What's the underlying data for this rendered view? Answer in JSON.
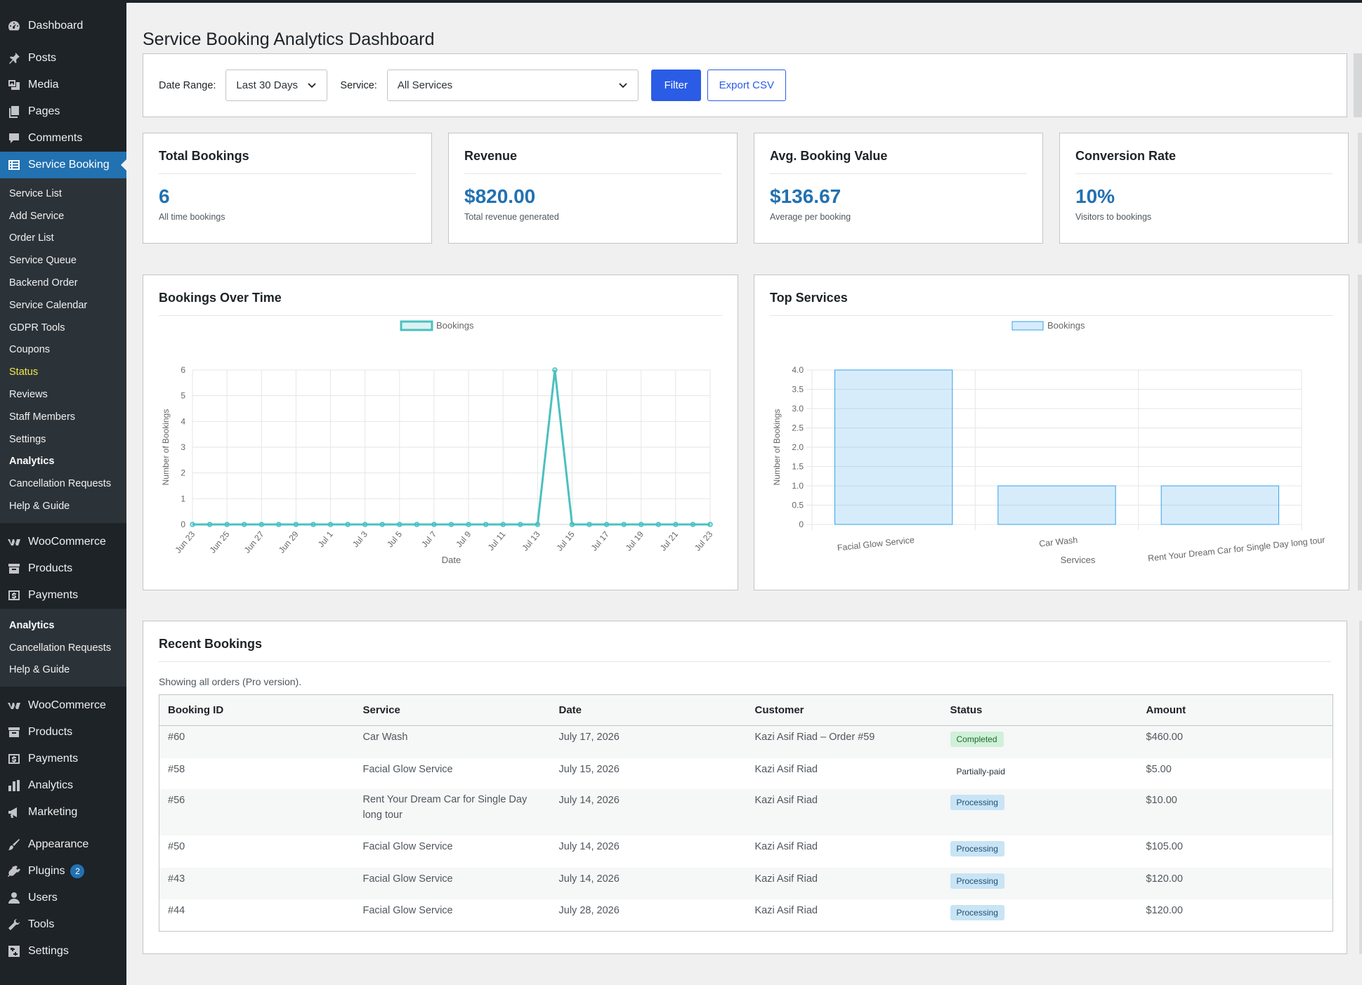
{
  "sidebar": {
    "items_top": [
      {
        "label": "Dashboard",
        "icon": "dashboard-icon"
      },
      {
        "label": "Posts",
        "icon": "pin-icon"
      },
      {
        "label": "Media",
        "icon": "media-icon"
      },
      {
        "label": "Pages",
        "icon": "pages-icon"
      },
      {
        "label": "Comments",
        "icon": "comment-icon"
      },
      {
        "label": "Service Booking",
        "icon": "list-icon"
      }
    ],
    "service_submenu": [
      "Service List",
      "Add Service",
      "Order List",
      "Service Queue",
      "Backend Order",
      "Service Calendar",
      "GDPR Tools",
      "Coupons",
      "Status",
      "Reviews",
      "Staff Members",
      "Settings",
      "Analytics",
      "Cancellation Requests",
      "Help & Guide"
    ],
    "items_mid": [
      {
        "label": "WooCommerce",
        "icon": "woo-icon"
      },
      {
        "label": "Products",
        "icon": "archive-icon"
      },
      {
        "label": "Payments",
        "icon": "payments-icon"
      }
    ],
    "dup_submenu": [
      "Analytics",
      "Cancellation Requests",
      "Help & Guide"
    ],
    "items_bottom": [
      {
        "label": "WooCommerce",
        "icon": "woo-icon"
      },
      {
        "label": "Products",
        "icon": "archive-icon"
      },
      {
        "label": "Payments",
        "icon": "payments-icon"
      },
      {
        "label": "Analytics",
        "icon": "bar-chart-icon"
      },
      {
        "label": "Marketing",
        "icon": "megaphone-icon"
      },
      {
        "label": "Appearance",
        "icon": "brush-icon"
      },
      {
        "label": "Plugins",
        "icon": "plugin-icon",
        "badge": "2"
      },
      {
        "label": "Users",
        "icon": "user-icon"
      },
      {
        "label": "Tools",
        "icon": "wrench-icon"
      },
      {
        "label": "Settings",
        "icon": "settings-icon"
      }
    ]
  },
  "page": {
    "title": "Service Booking Analytics Dashboard"
  },
  "filters": {
    "date_label": "Date Range:",
    "date_value": "Last 30 Days",
    "service_label": "Service:",
    "service_value": "All Services",
    "filter_btn": "Filter",
    "export_btn": "Export CSV"
  },
  "cards": [
    {
      "title": "Total Bookings",
      "value": "6",
      "sub": "All time bookings"
    },
    {
      "title": "Revenue",
      "value": "$820.00",
      "sub": "Total revenue generated"
    },
    {
      "title": "Avg. Booking Value",
      "value": "$136.67",
      "sub": "Average per booking"
    },
    {
      "title": "Conversion Rate",
      "value": "10%",
      "sub": "Visitors to bookings"
    }
  ],
  "chart_data": [
    {
      "panel_title": "Bookings Over Time",
      "type": "line",
      "legend": "Bookings",
      "xlabel": "Date",
      "ylabel": "Number of Bookings",
      "ylim": [
        0,
        6
      ],
      "yticks": [
        "0",
        "1",
        "2",
        "3",
        "4",
        "5",
        "6"
      ],
      "x_tick_labels": [
        "Jun 23",
        "Jun 25",
        "Jun 27",
        "Jun 29",
        "Jul 1",
        "Jul 3",
        "Jul 5",
        "Jul 7",
        "Jul 9",
        "Jul 11",
        "Jul 13",
        "Jul 15",
        "Jul 17",
        "Jul 19",
        "Jul 21",
        "Jul 23"
      ],
      "x": [
        "Jun 23",
        "Jun 24",
        "Jun 25",
        "Jun 26",
        "Jun 27",
        "Jun 28",
        "Jun 29",
        "Jun 30",
        "Jul 1",
        "Jul 2",
        "Jul 3",
        "Jul 4",
        "Jul 5",
        "Jul 6",
        "Jul 7",
        "Jul 8",
        "Jul 9",
        "Jul 10",
        "Jul 11",
        "Jul 12",
        "Jul 13",
        "Jul 14",
        "Jul 15",
        "Jul 16",
        "Jul 17",
        "Jul 18",
        "Jul 19",
        "Jul 20",
        "Jul 21",
        "Jul 22",
        "Jul 23"
      ],
      "values": [
        0,
        0,
        0,
        0,
        0,
        0,
        0,
        0,
        0,
        0,
        0,
        0,
        0,
        0,
        0,
        0,
        0,
        0,
        0,
        0,
        0,
        6,
        0,
        0,
        0,
        0,
        0,
        0,
        0,
        0,
        0
      ],
      "color": "#4bc0c0",
      "grid": true
    },
    {
      "panel_title": "Top Services",
      "type": "bar",
      "legend": "Bookings",
      "xlabel": "Services",
      "ylabel": "Number of Bookings",
      "ylim": [
        0,
        4
      ],
      "yticks": [
        "0",
        "0.5",
        "1.0",
        "1.5",
        "2.0",
        "2.5",
        "3.0",
        "3.5",
        "4.0"
      ],
      "categories": [
        "Facial Glow Service",
        "Car Wash",
        "Rent Your Dream Car for Single Day long tour"
      ],
      "values": [
        4,
        1,
        1
      ],
      "color": "#36a2eb",
      "grid": true
    }
  ],
  "recent": {
    "title": "Recent Bookings",
    "note": "Showing all orders (Pro version).",
    "columns": [
      "Booking ID",
      "Service",
      "Date",
      "Customer",
      "Status",
      "Amount"
    ],
    "rows": [
      {
        "id": "#60",
        "service": "Car Wash",
        "date": "July 17, 2026",
        "customer": "Kazi Asif Riad – Order #59",
        "status": "Completed",
        "amount": "$460.00"
      },
      {
        "id": "#58",
        "service": "Facial Glow Service",
        "date": "July 15, 2026",
        "customer": "Kazi Asif Riad",
        "status": "Partially-paid",
        "amount": "$5.00"
      },
      {
        "id": "#56",
        "service": "Rent Your Dream Car for Single Day long tour",
        "date": "July 14, 2026",
        "customer": "Kazi Asif Riad",
        "status": "Processing",
        "amount": "$10.00"
      },
      {
        "id": "#50",
        "service": "Facial Glow Service",
        "date": "July 14, 2026",
        "customer": "Kazi Asif Riad",
        "status": "Processing",
        "amount": "$105.00"
      },
      {
        "id": "#43",
        "service": "Facial Glow Service",
        "date": "July 14, 2026",
        "customer": "Kazi Asif Riad",
        "status": "Processing",
        "amount": "$120.00"
      },
      {
        "id": "#44",
        "service": "Facial Glow Service",
        "date": "July 28, 2026",
        "customer": "Kazi Asif Riad",
        "status": "Processing",
        "amount": "$120.00"
      }
    ]
  }
}
